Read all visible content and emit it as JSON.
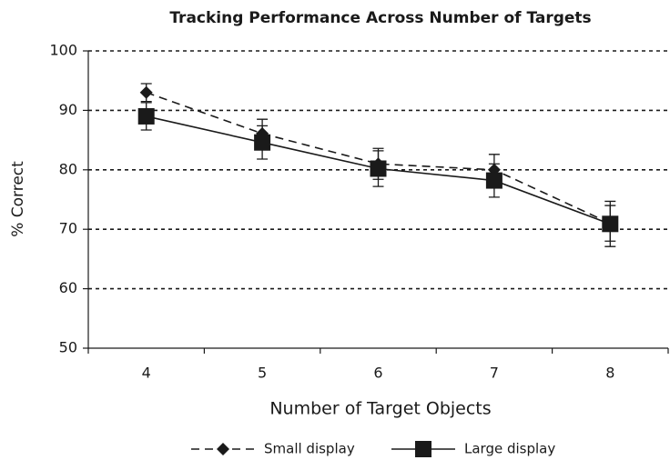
{
  "chart_data": {
    "type": "line",
    "title": "Tracking Performance Across Number of Targets",
    "x_label": "Number of Target Objects",
    "y_label": "% Correct",
    "categories": [
      "4",
      "5",
      "6",
      "7",
      "8"
    ],
    "ylim": [
      50,
      100
    ],
    "yticks": [
      50,
      60,
      70,
      80,
      90,
      100
    ],
    "grid": true,
    "legend": "bottom",
    "series": [
      {
        "name": "Small display",
        "color": "#1a1a1a",
        "dash": true,
        "marker": "diamond",
        "values": [
          93,
          86.1,
          81,
          80,
          71
        ],
        "errors": [
          1.5,
          2.4,
          2.6,
          2.6,
          3
        ]
      },
      {
        "name": "Large display",
        "color": "#1a1a1a",
        "dash": false,
        "marker": "square",
        "values": [
          89,
          84.6,
          80.2,
          78.2,
          70.9
        ],
        "errors": [
          2.3,
          2.8,
          3,
          2.8,
          3.8
        ]
      }
    ]
  }
}
